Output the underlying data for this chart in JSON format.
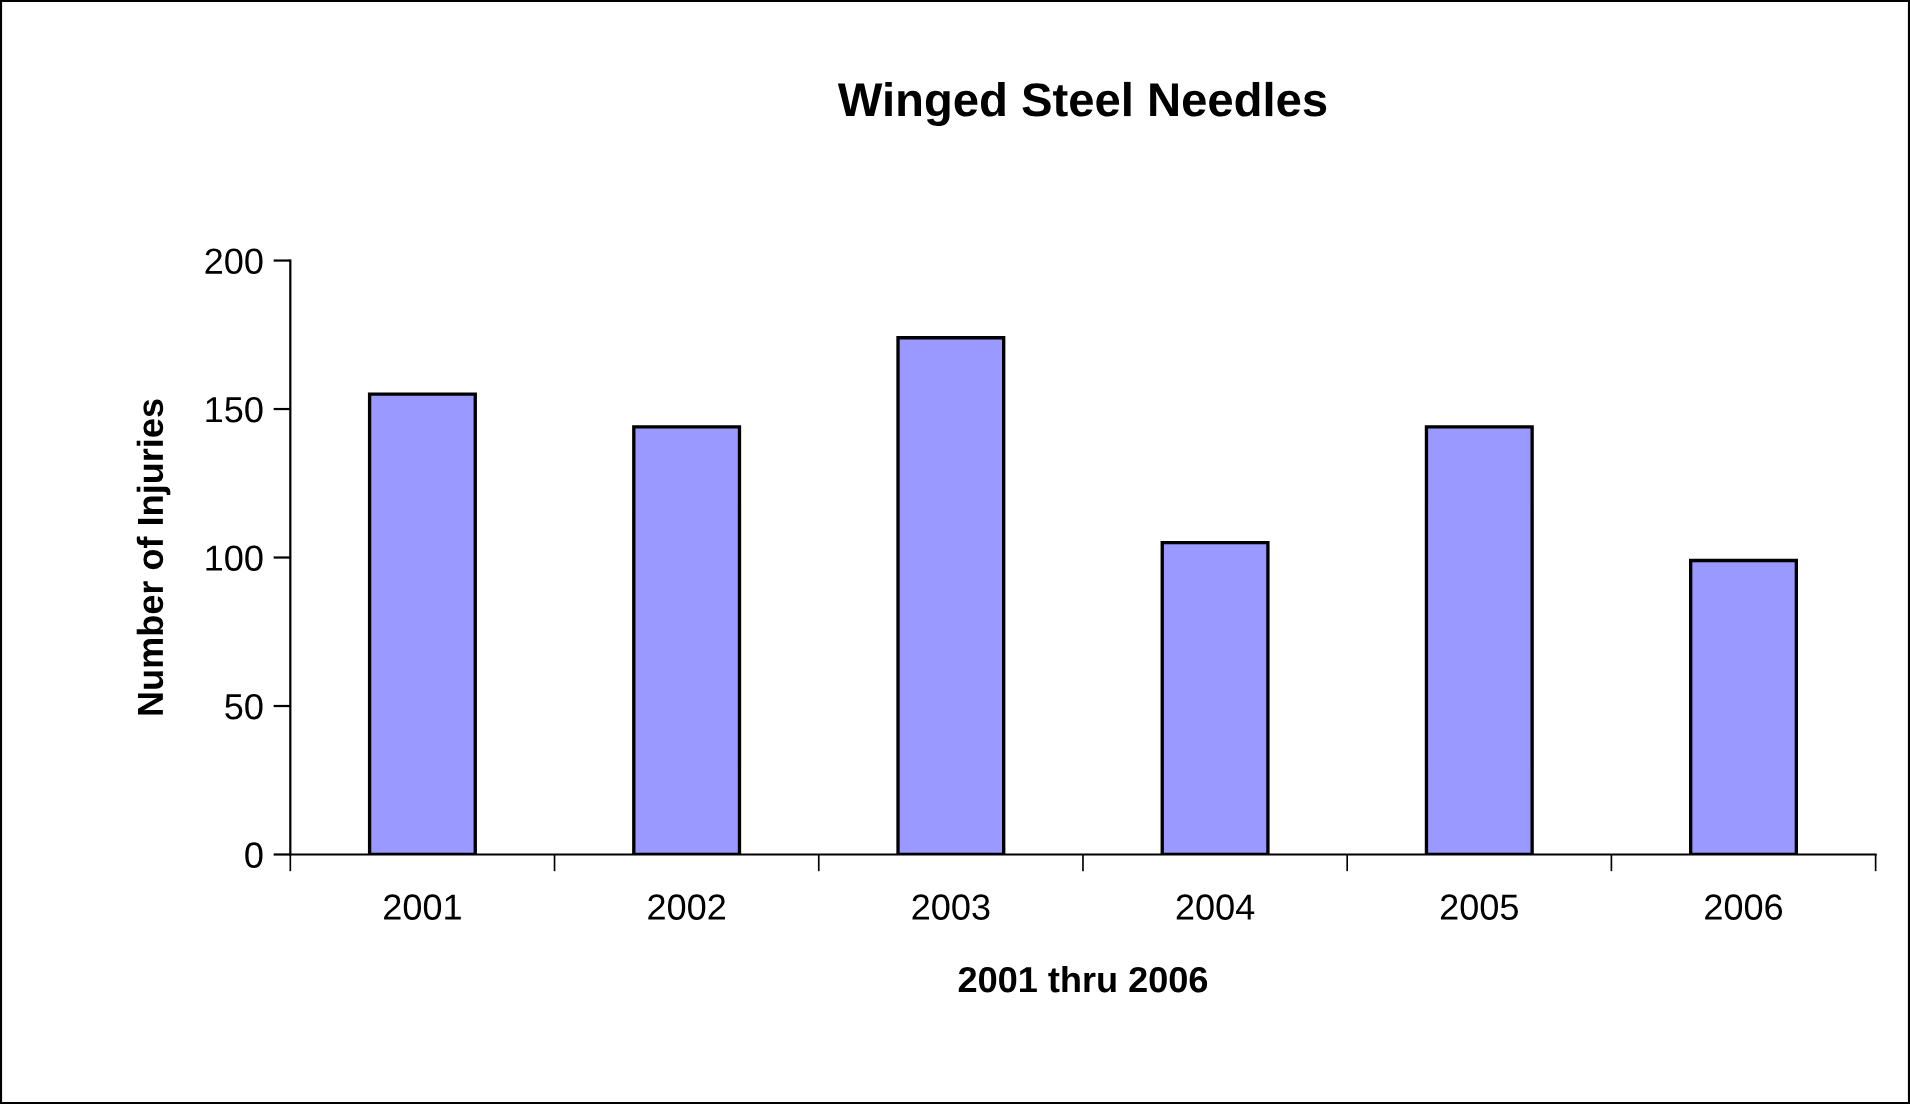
{
  "chart_data": {
    "type": "bar",
    "title": "Winged Steel Needles",
    "xlabel": "2001 thru 2006",
    "ylabel": "Number of Injuries",
    "categories": [
      "2001",
      "2002",
      "2003",
      "2004",
      "2005",
      "2006"
    ],
    "values": [
      155,
      144,
      174,
      105,
      144,
      99
    ],
    "color": "#9999ff",
    "ylim": [
      0,
      200
    ],
    "yticks": [
      0,
      50,
      100,
      150,
      200
    ],
    "grid": false,
    "legend": false
  }
}
